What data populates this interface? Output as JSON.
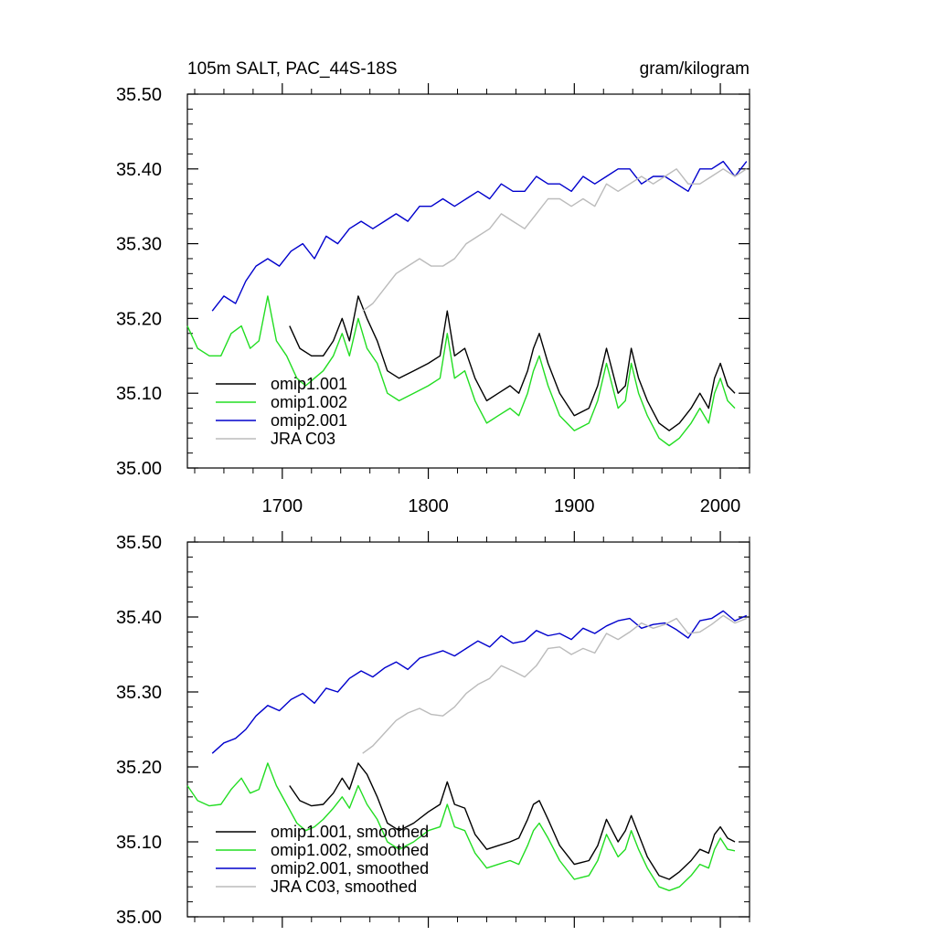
{
  "chart_data": [
    {
      "type": "line",
      "title": "105m SALT, PAC_44S-18S",
      "units": "gram/kilogram",
      "xlabel": "",
      "ylabel": "",
      "xlim": [
        1635,
        2020
      ],
      "ylim": [
        35.0,
        35.5
      ],
      "xticks": [
        1700,
        1800,
        1900,
        2000
      ],
      "xtick_labels": [
        "1700",
        "1800",
        "1900",
        "2000"
      ],
      "show_xtick_labels": true,
      "yticks": [
        35.0,
        35.1,
        35.2,
        35.3,
        35.4,
        35.5
      ],
      "ytick_labels": [
        "35.00",
        "35.10",
        "35.20",
        "35.30",
        "35.40",
        "35.50"
      ],
      "legend_position": "bottom-left",
      "grid": false,
      "series": [
        {
          "name": "omip1.001",
          "color": "#000000",
          "x": [
            1705,
            1712,
            1720,
            1728,
            1735,
            1741,
            1746,
            1752,
            1758,
            1765,
            1772,
            1780,
            1790,
            1800,
            1808,
            1813,
            1818,
            1825,
            1832,
            1840,
            1848,
            1856,
            1862,
            1868,
            1872,
            1876,
            1882,
            1890,
            1900,
            1910,
            1916,
            1922,
            1930,
            1935,
            1939,
            1944,
            1950,
            1958,
            1965,
            1972,
            1980,
            1986,
            1992,
            1996,
            2000,
            2005,
            2010
          ],
          "y": [
            35.19,
            35.16,
            35.15,
            35.15,
            35.17,
            35.2,
            35.17,
            35.23,
            35.2,
            35.17,
            35.13,
            35.12,
            35.13,
            35.14,
            35.15,
            35.21,
            35.15,
            35.16,
            35.12,
            35.09,
            35.1,
            35.11,
            35.1,
            35.13,
            35.16,
            35.18,
            35.14,
            35.1,
            35.07,
            35.08,
            35.11,
            35.16,
            35.1,
            35.11,
            35.16,
            35.12,
            35.09,
            35.06,
            35.05,
            35.06,
            35.08,
            35.1,
            35.08,
            35.12,
            35.14,
            35.11,
            35.1
          ]
        },
        {
          "name": "omip1.002",
          "color": "#22dd22",
          "x": [
            1635,
            1642,
            1650,
            1658,
            1665,
            1672,
            1678,
            1684,
            1690,
            1696,
            1703,
            1710,
            1716,
            1722,
            1728,
            1735,
            1741,
            1746,
            1752,
            1758,
            1765,
            1772,
            1780,
            1790,
            1800,
            1808,
            1813,
            1818,
            1825,
            1832,
            1840,
            1848,
            1856,
            1862,
            1868,
            1872,
            1876,
            1882,
            1890,
            1900,
            1910,
            1916,
            1922,
            1930,
            1935,
            1939,
            1944,
            1950,
            1958,
            1965,
            1972,
            1980,
            1986,
            1992,
            1996,
            2000,
            2005,
            2010
          ],
          "y": [
            35.19,
            35.16,
            35.15,
            35.15,
            35.18,
            35.19,
            35.16,
            35.17,
            35.23,
            35.17,
            35.15,
            35.12,
            35.11,
            35.12,
            35.13,
            35.15,
            35.18,
            35.15,
            35.2,
            35.16,
            35.14,
            35.1,
            35.09,
            35.1,
            35.11,
            35.12,
            35.18,
            35.12,
            35.13,
            35.09,
            35.06,
            35.07,
            35.08,
            35.07,
            35.1,
            35.13,
            35.15,
            35.11,
            35.07,
            35.05,
            35.06,
            35.09,
            35.14,
            35.08,
            35.09,
            35.14,
            35.1,
            35.07,
            35.04,
            35.03,
            35.04,
            35.06,
            35.08,
            35.06,
            35.1,
            35.12,
            35.09,
            35.08
          ]
        },
        {
          "name": "omip2.001",
          "color": "#0000cc",
          "x": [
            1652,
            1660,
            1668,
            1675,
            1682,
            1690,
            1698,
            1706,
            1714,
            1722,
            1730,
            1738,
            1746,
            1754,
            1762,
            1770,
            1778,
            1786,
            1794,
            1802,
            1810,
            1818,
            1826,
            1834,
            1842,
            1850,
            1858,
            1866,
            1874,
            1882,
            1890,
            1898,
            1906,
            1914,
            1922,
            1930,
            1938,
            1946,
            1954,
            1962,
            1970,
            1978,
            1986,
            1994,
            2002,
            2010,
            2018
          ],
          "y": [
            35.21,
            35.23,
            35.22,
            35.25,
            35.27,
            35.28,
            35.27,
            35.29,
            35.3,
            35.28,
            35.31,
            35.3,
            35.32,
            35.33,
            35.32,
            35.33,
            35.34,
            35.33,
            35.35,
            35.35,
            35.36,
            35.35,
            35.36,
            35.37,
            35.36,
            35.38,
            35.37,
            35.37,
            35.39,
            35.38,
            35.38,
            35.37,
            35.39,
            35.38,
            35.39,
            35.4,
            35.4,
            35.38,
            35.39,
            35.39,
            35.38,
            35.37,
            35.4,
            35.4,
            35.41,
            35.39,
            35.41
          ]
        },
        {
          "name": "JRA C03",
          "color": "#bbbbbb",
          "x": [
            1755,
            1762,
            1770,
            1778,
            1786,
            1794,
            1802,
            1810,
            1818,
            1826,
            1834,
            1842,
            1850,
            1858,
            1866,
            1874,
            1882,
            1890,
            1898,
            1906,
            1914,
            1922,
            1930,
            1938,
            1946,
            1954,
            1962,
            1970,
            1978,
            1986,
            1994,
            2002,
            2010,
            2018
          ],
          "y": [
            35.21,
            35.22,
            35.24,
            35.26,
            35.27,
            35.28,
            35.27,
            35.27,
            35.28,
            35.3,
            35.31,
            35.32,
            35.34,
            35.33,
            35.32,
            35.34,
            35.36,
            35.36,
            35.35,
            35.36,
            35.35,
            35.38,
            35.37,
            35.38,
            35.39,
            35.38,
            35.39,
            35.4,
            35.38,
            35.38,
            35.39,
            35.4,
            35.39,
            35.4
          ]
        }
      ]
    },
    {
      "type": "line",
      "title": "",
      "units": "",
      "xlabel": "",
      "ylabel": "",
      "xlim": [
        1635,
        2020
      ],
      "ylim": [
        35.0,
        35.5
      ],
      "xticks": [
        1700,
        1800,
        1900,
        2000
      ],
      "xtick_labels": [
        "1700",
        "1800",
        "1900",
        "2000"
      ],
      "show_xtick_labels": false,
      "yticks": [
        35.0,
        35.1,
        35.2,
        35.3,
        35.4,
        35.5
      ],
      "ytick_labels": [
        "35.00",
        "35.10",
        "35.20",
        "35.30",
        "35.40",
        "35.50"
      ],
      "legend_position": "bottom-left",
      "grid": false,
      "series": [
        {
          "name": "omip1.001, smoothed",
          "color": "#000000",
          "x": [
            1705,
            1712,
            1720,
            1728,
            1735,
            1741,
            1746,
            1752,
            1758,
            1765,
            1772,
            1780,
            1790,
            1800,
            1808,
            1813,
            1818,
            1825,
            1832,
            1840,
            1848,
            1856,
            1862,
            1868,
            1872,
            1876,
            1882,
            1890,
            1900,
            1910,
            1916,
            1922,
            1930,
            1935,
            1939,
            1944,
            1950,
            1958,
            1965,
            1972,
            1980,
            1986,
            1992,
            1996,
            2000,
            2005,
            2010
          ],
          "y": [
            35.175,
            35.155,
            35.148,
            35.15,
            35.165,
            35.185,
            35.17,
            35.205,
            35.19,
            35.16,
            35.125,
            35.115,
            35.125,
            35.14,
            35.15,
            35.18,
            35.15,
            35.145,
            35.11,
            35.09,
            35.095,
            35.1,
            35.105,
            35.13,
            35.15,
            35.155,
            35.13,
            35.095,
            35.07,
            35.075,
            35.095,
            35.13,
            35.1,
            35.115,
            35.135,
            35.11,
            35.08,
            35.055,
            35.05,
            35.06,
            35.075,
            35.09,
            35.085,
            35.11,
            35.12,
            35.105,
            35.1
          ]
        },
        {
          "name": "omip1.002, smoothed",
          "color": "#22dd22",
          "x": [
            1635,
            1642,
            1650,
            1658,
            1665,
            1672,
            1678,
            1684,
            1690,
            1696,
            1703,
            1710,
            1716,
            1722,
            1728,
            1735,
            1741,
            1746,
            1752,
            1758,
            1765,
            1772,
            1780,
            1790,
            1800,
            1808,
            1813,
            1818,
            1825,
            1832,
            1840,
            1848,
            1856,
            1862,
            1868,
            1872,
            1876,
            1882,
            1890,
            1900,
            1910,
            1916,
            1922,
            1930,
            1935,
            1939,
            1944,
            1950,
            1958,
            1965,
            1972,
            1980,
            1986,
            1992,
            1996,
            2000,
            2005,
            2010
          ],
          "y": [
            35.175,
            35.155,
            35.148,
            35.15,
            35.17,
            35.185,
            35.165,
            35.17,
            35.205,
            35.175,
            35.15,
            35.125,
            35.115,
            35.12,
            35.13,
            35.145,
            35.16,
            35.145,
            35.175,
            35.15,
            35.13,
            35.1,
            35.09,
            35.1,
            35.115,
            35.12,
            35.15,
            35.12,
            35.115,
            35.085,
            35.065,
            35.07,
            35.075,
            35.07,
            35.095,
            35.115,
            35.125,
            35.105,
            35.075,
            35.05,
            35.055,
            35.075,
            35.11,
            35.08,
            35.09,
            35.115,
            35.09,
            35.065,
            35.04,
            35.035,
            35.04,
            35.055,
            35.07,
            35.065,
            35.09,
            35.105,
            35.09,
            35.088
          ]
        },
        {
          "name": "omip2.001, smoothed",
          "color": "#0000cc",
          "x": [
            1652,
            1660,
            1668,
            1675,
            1682,
            1690,
            1698,
            1706,
            1714,
            1722,
            1730,
            1738,
            1746,
            1754,
            1762,
            1770,
            1778,
            1786,
            1794,
            1802,
            1810,
            1818,
            1826,
            1834,
            1842,
            1850,
            1858,
            1866,
            1874,
            1882,
            1890,
            1898,
            1906,
            1914,
            1922,
            1930,
            1938,
            1946,
            1954,
            1962,
            1970,
            1978,
            1986,
            1994,
            2002,
            2010,
            2018
          ],
          "y": [
            35.218,
            35.232,
            35.238,
            35.25,
            35.268,
            35.282,
            35.275,
            35.29,
            35.298,
            35.285,
            35.305,
            35.3,
            35.318,
            35.328,
            35.32,
            35.332,
            35.34,
            35.33,
            35.345,
            35.35,
            35.355,
            35.348,
            35.358,
            35.368,
            35.36,
            35.375,
            35.365,
            35.368,
            35.382,
            35.375,
            35.378,
            35.37,
            35.385,
            35.378,
            35.388,
            35.395,
            35.398,
            35.385,
            35.39,
            35.392,
            35.383,
            35.372,
            35.395,
            35.398,
            35.408,
            35.395,
            35.402
          ]
        },
        {
          "name": "JRA C03, smoothed",
          "color": "#bbbbbb",
          "x": [
            1755,
            1762,
            1770,
            1778,
            1786,
            1794,
            1802,
            1810,
            1818,
            1826,
            1834,
            1842,
            1850,
            1858,
            1866,
            1874,
            1882,
            1890,
            1898,
            1906,
            1914,
            1922,
            1930,
            1938,
            1946,
            1954,
            1962,
            1970,
            1978,
            1986,
            1994,
            2002,
            2010,
            2018
          ],
          "y": [
            35.218,
            35.228,
            35.245,
            35.262,
            35.272,
            35.278,
            35.27,
            35.268,
            35.28,
            35.298,
            35.31,
            35.318,
            35.335,
            35.328,
            35.32,
            35.335,
            35.358,
            35.36,
            35.35,
            35.358,
            35.352,
            35.378,
            35.37,
            35.38,
            35.392,
            35.385,
            35.39,
            35.398,
            35.378,
            35.38,
            35.39,
            35.402,
            35.392,
            35.398
          ]
        }
      ]
    }
  ]
}
